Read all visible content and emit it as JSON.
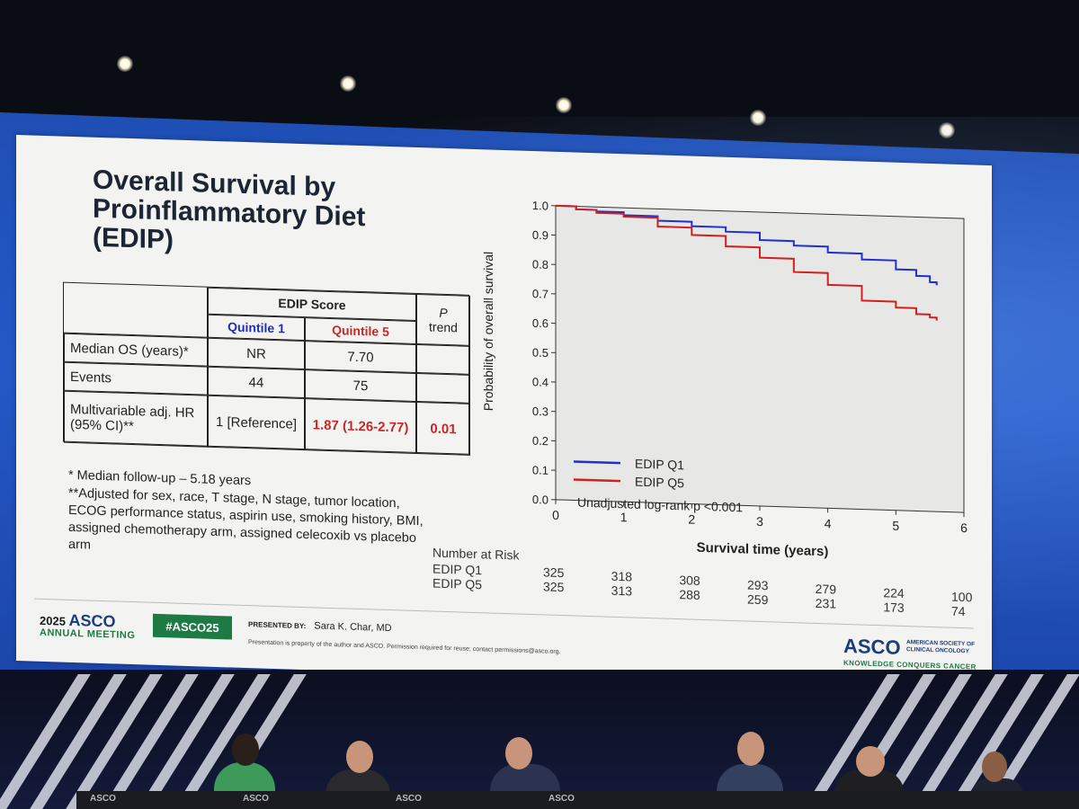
{
  "slide": {
    "title": "Overall Survival by Proinflammatory Diet (EDIP)",
    "table": {
      "group_header": "EDIP Score",
      "col_q1": "Quintile 1",
      "col_q5": "Quintile 5",
      "col_p_italic": "P",
      "col_p_rest": "trend",
      "rows": [
        {
          "label": "Median OS (years)*",
          "q1": "NR",
          "q5": "7.70",
          "p": ""
        },
        {
          "label": "Events",
          "q1": "44",
          "q5": "75",
          "p": ""
        },
        {
          "label": "Multivariable adj. HR (95% CI)**",
          "q1": "1 [Reference]",
          "q5": "1.87 (1.26-2.77)",
          "p": "0.01"
        }
      ]
    },
    "footnote_1": "* Median follow-up – 5.18 years",
    "footnote_2": "**Adjusted for sex, race, T stage, N stage, tumor location, ECOG performance status, aspirin use, smoking history, BMI, assigned chemotherapy arm, assigned celecoxib vs placebo arm",
    "risk_table": {
      "header": "Number at Risk",
      "rows": [
        {
          "label": "EDIP Q1",
          "values": [
            "325",
            "318",
            "308",
            "293",
            "279",
            "224",
            "100"
          ]
        },
        {
          "label": "EDIP Q5",
          "values": [
            "325",
            "313",
            "288",
            "259",
            "231",
            "173",
            "74"
          ]
        }
      ]
    },
    "footer": {
      "year": "2025",
      "org": "ASCO",
      "annual": "ANNUAL MEETING",
      "hashtag": "#ASCO25",
      "presented_label": "PRESENTED BY:",
      "presenter": "Sara K. Char, MD",
      "disclaimer": "Presentation is property of the author and ASCO. Permission required for reuse; contact permissions@asco.org.",
      "logo": "ASCO",
      "logo_sub": "AMERICAN SOCIETY OF CLINICAL ONCOLOGY",
      "tagline": "KNOWLEDGE CONQUERS CANCER"
    }
  },
  "chart_data": {
    "type": "line",
    "title": "",
    "xlabel": "Survival time (years)",
    "ylabel": "Probability of overall survival",
    "xlim": [
      0,
      6
    ],
    "ylim": [
      0.0,
      1.0
    ],
    "x_ticks": [
      "0",
      "1",
      "2",
      "3",
      "4",
      "5",
      "6"
    ],
    "y_ticks": [
      "0.0",
      "0.1",
      "0.2",
      "0.3",
      "0.4",
      "0.5",
      "0.6",
      "0.7",
      "0.8",
      "0.9",
      "1.0"
    ],
    "annotation": "Unadjusted log-rank p <0.001",
    "series": [
      {
        "name": "EDIP Q1",
        "color": "#1f2fd0",
        "x": [
          0,
          0.3,
          0.6,
          1.0,
          1.5,
          2.0,
          2.5,
          3.0,
          3.5,
          4.0,
          4.5,
          5.0,
          5.3,
          5.5,
          5.6
        ],
        "y": [
          1.0,
          0.99,
          0.985,
          0.975,
          0.96,
          0.945,
          0.93,
          0.905,
          0.89,
          0.87,
          0.85,
          0.82,
          0.8,
          0.78,
          0.77
        ]
      },
      {
        "name": "EDIP Q5",
        "color": "#d02020",
        "x": [
          0,
          0.3,
          0.6,
          1.0,
          1.5,
          2.0,
          2.5,
          3.0,
          3.5,
          4.0,
          4.5,
          5.0,
          5.3,
          5.5,
          5.6
        ],
        "y": [
          1.0,
          0.99,
          0.98,
          0.97,
          0.94,
          0.915,
          0.88,
          0.845,
          0.8,
          0.76,
          0.71,
          0.69,
          0.67,
          0.66,
          0.65
        ]
      }
    ]
  }
}
